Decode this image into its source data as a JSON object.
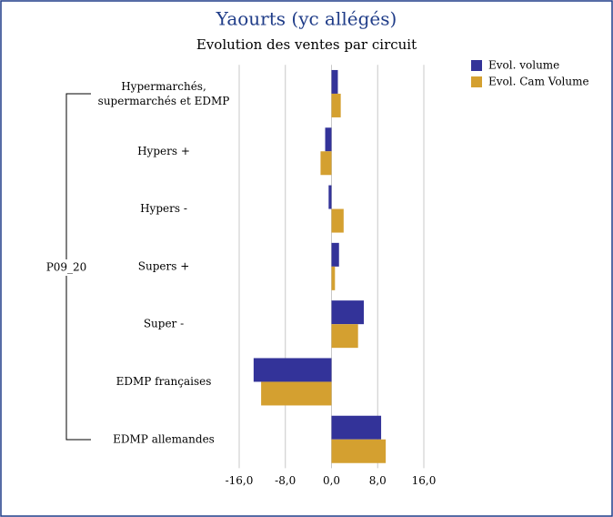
{
  "chart_data": {
    "type": "hbar",
    "title": "Yaourts (yc allégés)",
    "subtitle": "Evolution des ventes par circuit",
    "group_label": "P09_20",
    "categories": [
      "Hypermarchés,\nsupermarchés et EDMP",
      "Hypers +",
      "Hypers -",
      "Supers +",
      "Super -",
      "EDMP françaises",
      "EDMP allemandes"
    ],
    "series": [
      {
        "name": "Evol. volume",
        "color": "#333399",
        "values": [
          1.1,
          -1.1,
          -0.5,
          1.3,
          5.6,
          -13.5,
          8.6
        ]
      },
      {
        "name": "Evol. Cam Volume",
        "color": "#d4a030",
        "values": [
          1.6,
          -1.9,
          2.1,
          0.6,
          4.6,
          -12.2,
          9.4
        ]
      }
    ],
    "xlim": [
      -16,
      16
    ],
    "xticks": [
      {
        "value": -16,
        "label": "-16,0"
      },
      {
        "value": -8,
        "label": "-8,0"
      },
      {
        "value": 0,
        "label": "0,0"
      },
      {
        "value": 8,
        "label": "8,0"
      },
      {
        "value": 16,
        "label": "16,0"
      }
    ],
    "grid": true,
    "legend": "top-right"
  }
}
